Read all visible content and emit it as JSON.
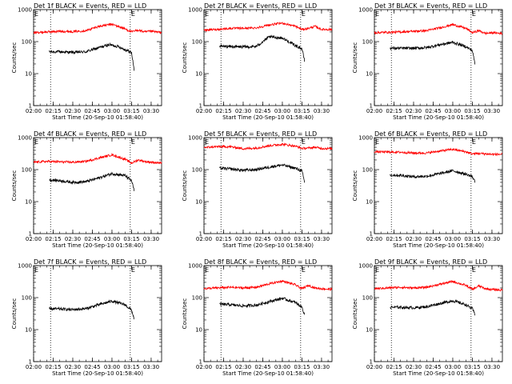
{
  "figure": {
    "background": "#ffffff",
    "axis_color": "#000000",
    "events_color": "#000000",
    "lld_color": "#ff0000"
  },
  "chart_data": [
    {
      "type": "line",
      "title": "Det 1f BLACK = Events, RED = LLD",
      "xlabel": "Start Time (20-Sep-10 01:58:40)",
      "ylabel": "Counts/sec",
      "y_scale": "log",
      "ylim": [
        1,
        1000
      ],
      "x_ticks": [
        "02:00",
        "02:15",
        "02:30",
        "02:45",
        "03:00",
        "03:15",
        "03:30"
      ],
      "xlim": [
        "02:00",
        "03:38"
      ],
      "y_ticks": [
        "1",
        "10",
        "100",
        "1000"
      ],
      "markers": [
        {
          "label": "E",
          "time": "02:00"
        },
        {
          "label": "",
          "time": "02:13"
        },
        {
          "label": "E",
          "time": "03:14"
        }
      ],
      "series": [
        {
          "name": "Events",
          "color": "#000000",
          "x": [
            "02:12",
            "02:20",
            "02:30",
            "02:40",
            "02:50",
            "02:58",
            "03:05",
            "03:10",
            "03:15",
            "03:17"
          ],
          "y": [
            48,
            48,
            46,
            48,
            65,
            80,
            70,
            56,
            45,
            13
          ]
        },
        {
          "name": "LLD",
          "color": "#ff0000",
          "x": [
            "02:00",
            "02:10",
            "02:20",
            "02:30",
            "02:40",
            "02:50",
            "03:00",
            "03:10",
            "03:15",
            "03:20",
            "03:25",
            "03:30",
            "03:38"
          ],
          "y": [
            190,
            200,
            210,
            205,
            220,
            300,
            350,
            250,
            200,
            230,
            200,
            210,
            190
          ]
        }
      ]
    },
    {
      "type": "line",
      "title": "Det 2f BLACK = Events, RED = LLD",
      "xlabel": "Start Time (20-Sep-10 01:58:40)",
      "ylabel": "Counts/sec",
      "y_scale": "log",
      "ylim": [
        1,
        1000
      ],
      "x_ticks": [
        "02:00",
        "02:15",
        "02:30",
        "02:45",
        "03:00",
        "03:15",
        "03:30"
      ],
      "xlim": [
        "02:00",
        "03:38"
      ],
      "y_ticks": [
        "1",
        "10",
        "100",
        "1000"
      ],
      "markers": [
        {
          "label": "E",
          "time": "02:00"
        },
        {
          "label": "",
          "time": "02:13"
        },
        {
          "label": "E",
          "time": "03:14"
        }
      ],
      "series": [
        {
          "name": "Events",
          "color": "#000000",
          "x": [
            "02:12",
            "02:20",
            "02:30",
            "02:40",
            "02:45",
            "02:50",
            "03:00",
            "03:10",
            "03:15",
            "03:17"
          ],
          "y": [
            72,
            70,
            68,
            70,
            100,
            140,
            130,
            75,
            60,
            25
          ]
        },
        {
          "name": "LLD",
          "color": "#ff0000",
          "x": [
            "02:00",
            "02:10",
            "02:20",
            "02:30",
            "02:40",
            "02:50",
            "03:00",
            "03:10",
            "03:15",
            "03:20",
            "03:25",
            "03:30",
            "03:38"
          ],
          "y": [
            230,
            240,
            260,
            260,
            270,
            330,
            380,
            300,
            240,
            260,
            300,
            240,
            240
          ]
        }
      ]
    },
    {
      "type": "line",
      "title": "Det 3f BLACK = Events, RED = LLD",
      "xlabel": "Start Time (20-Sep-10 01:58:40)",
      "ylabel": "Counts/sec",
      "y_scale": "log",
      "ylim": [
        1,
        1000
      ],
      "x_ticks": [
        "02:00",
        "02:15",
        "02:30",
        "02:45",
        "03:00",
        "03:15",
        "03:30"
      ],
      "xlim": [
        "02:00",
        "03:38"
      ],
      "y_ticks": [
        "1",
        "10",
        "100",
        "1000"
      ],
      "markers": [
        {
          "label": "E",
          "time": "02:00"
        },
        {
          "label": "",
          "time": "02:13"
        },
        {
          "label": "E",
          "time": "03:14"
        }
      ],
      "series": [
        {
          "name": "Events",
          "color": "#000000",
          "x": [
            "02:12",
            "02:20",
            "02:30",
            "02:40",
            "02:50",
            "03:00",
            "03:10",
            "03:15",
            "03:17"
          ],
          "y": [
            62,
            62,
            62,
            65,
            80,
            95,
            70,
            52,
            20
          ]
        },
        {
          "name": "LLD",
          "color": "#ff0000",
          "x": [
            "02:00",
            "02:10",
            "02:20",
            "02:30",
            "02:40",
            "02:50",
            "03:00",
            "03:10",
            "03:15",
            "03:20",
            "03:25",
            "03:30",
            "03:38"
          ],
          "y": [
            190,
            195,
            200,
            210,
            220,
            270,
            340,
            260,
            190,
            220,
            180,
            190,
            180
          ]
        }
      ]
    },
    {
      "type": "line",
      "title": "Det 4f BLACK = Events, RED = LLD",
      "xlabel": "Start Time (20-Sep-10 01:58:40)",
      "ylabel": "Counts/sec",
      "y_scale": "log",
      "ylim": [
        1,
        1000
      ],
      "x_ticks": [
        "02:00",
        "02:15",
        "02:30",
        "02:45",
        "03:00",
        "03:15",
        "03:30"
      ],
      "xlim": [
        "02:00",
        "03:38"
      ],
      "y_ticks": [
        "1",
        "10",
        "100",
        "1000"
      ],
      "markers": [
        {
          "label": "E",
          "time": "02:00"
        },
        {
          "label": "",
          "time": "02:13"
        },
        {
          "label": "E",
          "time": "03:14"
        }
      ],
      "series": [
        {
          "name": "Events",
          "color": "#000000",
          "x": [
            "02:12",
            "02:20",
            "02:30",
            "02:40",
            "02:50",
            "03:00",
            "03:10",
            "03:15",
            "03:17"
          ],
          "y": [
            48,
            45,
            40,
            42,
            55,
            75,
            65,
            45,
            22
          ]
        },
        {
          "name": "LLD",
          "color": "#ff0000",
          "x": [
            "02:00",
            "02:10",
            "02:20",
            "02:30",
            "02:40",
            "02:50",
            "03:00",
            "03:10",
            "03:15",
            "03:20",
            "03:25",
            "03:30",
            "03:38"
          ],
          "y": [
            170,
            180,
            175,
            170,
            180,
            230,
            290,
            210,
            160,
            200,
            180,
            170,
            160
          ]
        }
      ]
    },
    {
      "type": "line",
      "title": "Det 5f BLACK = Events, RED = LLD",
      "xlabel": "Start Time (20-Sep-10 01:58:40)",
      "ylabel": "Counts/sec",
      "y_scale": "log",
      "ylim": [
        1,
        1000
      ],
      "x_ticks": [
        "02:00",
        "02:15",
        "02:30",
        "02:45",
        "03:00",
        "03:15",
        "03:30"
      ],
      "xlim": [
        "02:00",
        "03:38"
      ],
      "y_ticks": [
        "1",
        "10",
        "100",
        "1000"
      ],
      "markers": [
        {
          "label": "E",
          "time": "02:00"
        },
        {
          "label": "",
          "time": "02:13"
        },
        {
          "label": "E",
          "time": "03:14"
        }
      ],
      "series": [
        {
          "name": "Events",
          "color": "#000000",
          "x": [
            "02:12",
            "02:20",
            "02:30",
            "02:40",
            "02:50",
            "03:00",
            "03:10",
            "03:15",
            "03:17"
          ],
          "y": [
            110,
            105,
            95,
            100,
            120,
            140,
            110,
            90,
            40
          ]
        },
        {
          "name": "LLD",
          "color": "#ff0000",
          "x": [
            "02:00",
            "02:10",
            "02:20",
            "02:30",
            "02:40",
            "02:50",
            "03:00",
            "03:10",
            "03:15",
            "03:20",
            "03:25",
            "03:30",
            "03:38"
          ],
          "y": [
            490,
            520,
            520,
            450,
            470,
            560,
            620,
            540,
            460,
            470,
            500,
            460,
            450
          ]
        }
      ]
    },
    {
      "type": "line",
      "title": "Det 6f BLACK = Events, RED = LLD",
      "xlabel": "Start Time (20-Sep-10 01:58:40)",
      "ylabel": "Counts/sec",
      "y_scale": "log",
      "ylim": [
        1,
        1000
      ],
      "x_ticks": [
        "02:00",
        "02:15",
        "02:30",
        "02:45",
        "03:00",
        "03:15",
        "03:30"
      ],
      "xlim": [
        "02:00",
        "03:38"
      ],
      "y_ticks": [
        "1",
        "10",
        "100",
        "1000"
      ],
      "markers": [
        {
          "label": "E",
          "time": "02:00"
        },
        {
          "label": "",
          "time": "02:13"
        },
        {
          "label": "E",
          "time": "03:14"
        }
      ],
      "series": [
        {
          "name": "Events",
          "color": "#000000",
          "x": [
            "02:12",
            "02:20",
            "02:30",
            "02:40",
            "02:50",
            "03:00",
            "03:10",
            "03:15",
            "03:17"
          ],
          "y": [
            68,
            66,
            60,
            62,
            75,
            92,
            72,
            60,
            42
          ]
        },
        {
          "name": "LLD",
          "color": "#ff0000",
          "x": [
            "02:00",
            "02:10",
            "02:20",
            "02:30",
            "02:40",
            "02:50",
            "03:00",
            "03:10",
            "03:15",
            "03:20",
            "03:25",
            "03:30",
            "03:38"
          ],
          "y": [
            360,
            355,
            350,
            330,
            330,
            380,
            430,
            360,
            310,
            320,
            310,
            300,
            300
          ]
        }
      ]
    },
    {
      "type": "line",
      "title": "Det 7f BLACK = Events, RED = LLD",
      "xlabel": "Start Time (20-Sep-10 01:58:40)",
      "ylabel": "Counts/sec",
      "y_scale": "log",
      "ylim": [
        1,
        1000
      ],
      "x_ticks": [
        "02:00",
        "02:15",
        "02:30",
        "02:45",
        "03:00",
        "03:15",
        "03:30"
      ],
      "xlim": [
        "02:00",
        "03:38"
      ],
      "y_ticks": [
        "1",
        "10",
        "100",
        "1000"
      ],
      "markers": [
        {
          "label": "E",
          "time": "02:00"
        },
        {
          "label": "",
          "time": "02:13"
        },
        {
          "label": "E",
          "time": "03:14"
        }
      ],
      "series": [
        {
          "name": "Events",
          "color": "#000000",
          "x": [
            "02:12",
            "02:20",
            "02:30",
            "02:40",
            "02:50",
            "03:00",
            "03:10",
            "03:15",
            "03:17"
          ],
          "y": [
            45,
            44,
            42,
            45,
            60,
            78,
            60,
            40,
            22
          ]
        }
      ]
    },
    {
      "type": "line",
      "title": "Det 8f BLACK = Events, RED = LLD",
      "xlabel": "Start Time (20-Sep-10 01:58:40)",
      "ylabel": "Counts/sec",
      "y_scale": "log",
      "ylim": [
        1,
        1000
      ],
      "x_ticks": [
        "02:00",
        "02:15",
        "02:30",
        "02:45",
        "03:00",
        "03:15",
        "03:30"
      ],
      "xlim": [
        "02:00",
        "03:38"
      ],
      "y_ticks": [
        "1",
        "10",
        "100",
        "1000"
      ],
      "markers": [
        {
          "label": "E",
          "time": "02:00"
        },
        {
          "label": "",
          "time": "02:13"
        },
        {
          "label": "E",
          "time": "03:14"
        }
      ],
      "series": [
        {
          "name": "Events",
          "color": "#000000",
          "x": [
            "02:12",
            "02:20",
            "02:30",
            "02:40",
            "02:50",
            "03:00",
            "03:10",
            "03:15",
            "03:17"
          ],
          "y": [
            62,
            60,
            55,
            58,
            75,
            95,
            70,
            50,
            30
          ]
        },
        {
          "name": "LLD",
          "color": "#ff0000",
          "x": [
            "02:00",
            "02:10",
            "02:20",
            "02:30",
            "02:40",
            "02:50",
            "03:00",
            "03:10",
            "03:15",
            "03:20",
            "03:25",
            "03:30",
            "03:38"
          ],
          "y": [
            190,
            200,
            210,
            200,
            210,
            270,
            330,
            250,
            190,
            240,
            200,
            190,
            180
          ]
        }
      ]
    },
    {
      "type": "line",
      "title": "Det 9f BLACK = Events, RED = LLD",
      "xlabel": "Start Time (20-Sep-10 01:58:40)",
      "ylabel": "Counts/sec",
      "y_scale": "log",
      "ylim": [
        1,
        1000
      ],
      "x_ticks": [
        "02:00",
        "02:15",
        "02:30",
        "02:45",
        "03:00",
        "03:15",
        "03:30"
      ],
      "xlim": [
        "02:00",
        "03:38"
      ],
      "y_ticks": [
        "1",
        "10",
        "100",
        "1000"
      ],
      "markers": [
        {
          "label": "E",
          "time": "02:00"
        },
        {
          "label": "",
          "time": "02:13"
        },
        {
          "label": "E",
          "time": "03:14"
        }
      ],
      "series": [
        {
          "name": "Events",
          "color": "#000000",
          "x": [
            "02:12",
            "02:20",
            "02:30",
            "02:40",
            "02:50",
            "03:00",
            "03:10",
            "03:15",
            "03:17"
          ],
          "y": [
            50,
            50,
            48,
            52,
            65,
            80,
            60,
            45,
            30
          ]
        },
        {
          "name": "LLD",
          "color": "#ff0000",
          "x": [
            "02:00",
            "02:10",
            "02:20",
            "02:30",
            "02:40",
            "02:50",
            "03:00",
            "03:10",
            "03:15",
            "03:20",
            "03:25",
            "03:30",
            "03:38"
          ],
          "y": [
            190,
            200,
            210,
            200,
            210,
            260,
            320,
            240,
            180,
            230,
            190,
            180,
            170
          ]
        }
      ]
    }
  ]
}
